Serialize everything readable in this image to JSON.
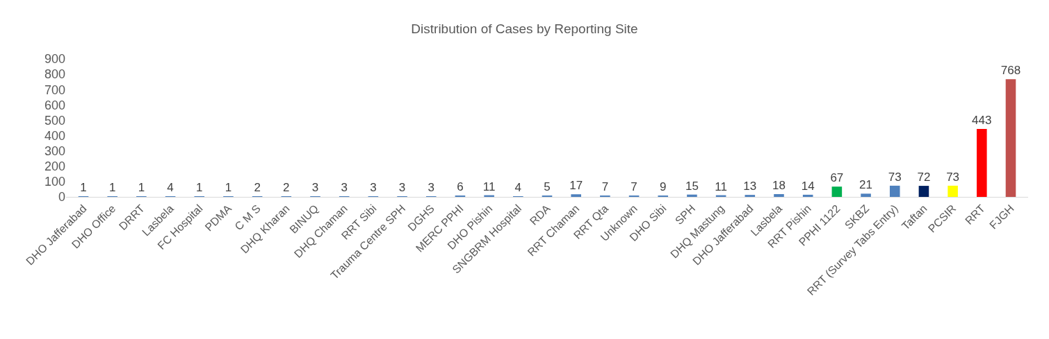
{
  "chart_data": {
    "type": "bar",
    "title": "Distribution of Cases by Reporting Site",
    "categories": [
      "DHO Jafferabad",
      "DHO Office",
      "DRRT",
      "Lasbela",
      "FC Hospital",
      "PDMA",
      "C M S",
      "DHQ Kharan",
      "BINUQ",
      "DHQ Chaman",
      "RRT Sibi",
      "Trauma Centre SPH",
      "DGHS",
      "MERC PPHI",
      "DHO Pishin",
      "SNGBRM Hospital",
      "RDA",
      "RRT Chaman",
      "RRT Qta",
      "Unknown",
      "DHO Sibi",
      "SPH",
      "DHQ Mastung",
      "DHO Jafferabad",
      "Lasbela",
      "RRT Pishin",
      "PPHI 1122",
      "SKBZ",
      "RRT (Survey Tabs Entry)",
      "Taftan",
      "PCSIR",
      "RRT",
      "FJGH"
    ],
    "values": [
      1,
      1,
      1,
      4,
      1,
      1,
      2,
      2,
      3,
      3,
      3,
      3,
      3,
      6,
      11,
      4,
      5,
      17,
      7,
      7,
      9,
      15,
      11,
      13,
      18,
      14,
      67,
      21,
      73,
      72,
      73,
      443,
      768
    ],
    "colors": [
      "#4f81bd",
      "#4f81bd",
      "#4f81bd",
      "#4f81bd",
      "#4f81bd",
      "#4f81bd",
      "#4f81bd",
      "#4f81bd",
      "#4f81bd",
      "#4f81bd",
      "#4f81bd",
      "#4f81bd",
      "#4f81bd",
      "#4f81bd",
      "#4f81bd",
      "#4f81bd",
      "#4f81bd",
      "#4f81bd",
      "#4f81bd",
      "#4f81bd",
      "#4f81bd",
      "#4f81bd",
      "#4f81bd",
      "#4f81bd",
      "#4f81bd",
      "#4f81bd",
      "#00b050",
      "#4f81bd",
      "#4f81bd",
      "#002060",
      "#ffff00",
      "#ff0000",
      "#c0504d"
    ],
    "ylim": [
      0,
      900
    ],
    "yticks": [
      0,
      100,
      200,
      300,
      400,
      500,
      600,
      700,
      800,
      900
    ],
    "data_labels": true
  }
}
